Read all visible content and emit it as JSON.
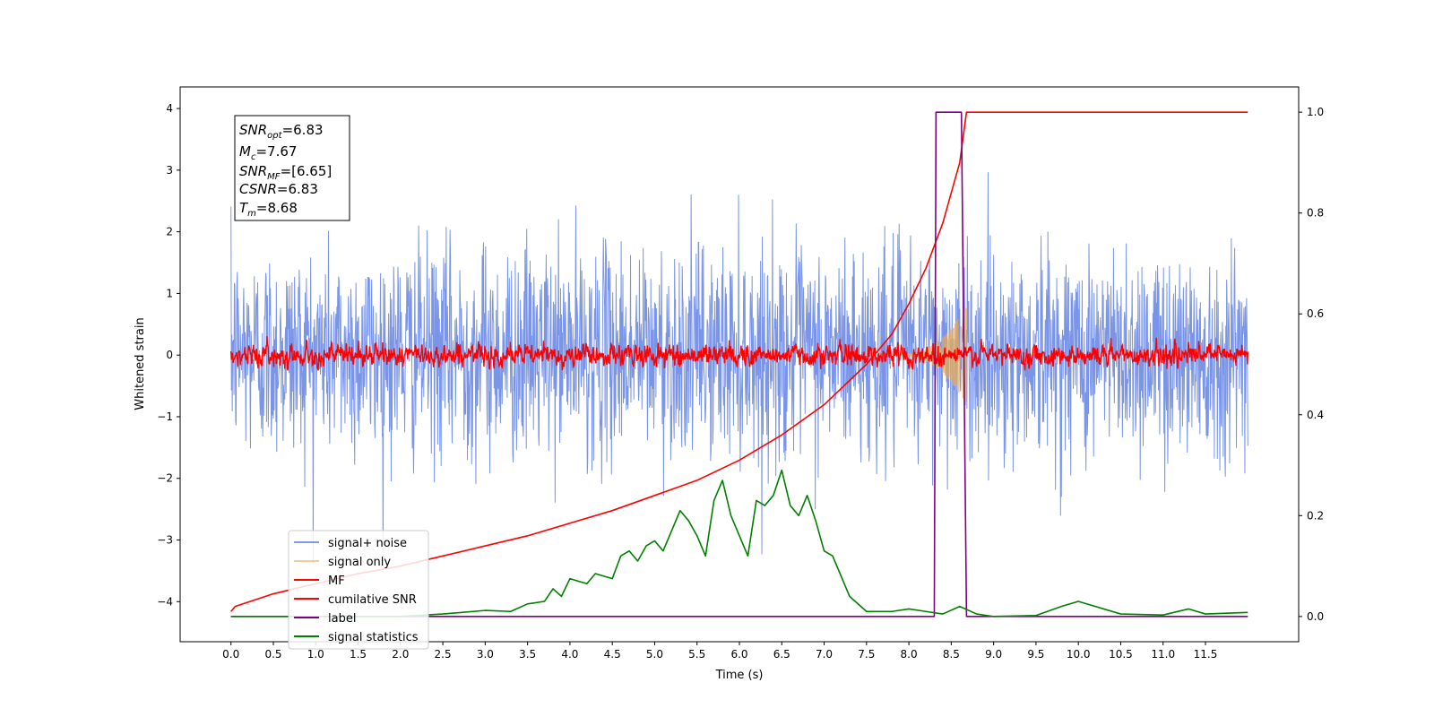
{
  "chart_data": {
    "type": "line",
    "xlabel": "Time (s)",
    "ylabel": "Whitened strain",
    "xlim": [
      -0.6,
      12.6
    ],
    "ylim": [
      -4.65,
      4.35
    ],
    "y2lim": [
      -0.05,
      1.05
    ],
    "xticks": [
      "0.0",
      "0.5",
      "1.0",
      "1.5",
      "2.0",
      "2.5",
      "3.0",
      "3.5",
      "4.0",
      "4.5",
      "5.0",
      "5.5",
      "6.0",
      "6.5",
      "7.0",
      "7.5",
      "8.0",
      "8.5",
      "9.0",
      "9.5",
      "10.0",
      "10.5",
      "11.0",
      "11.5"
    ],
    "yticks": [
      "4",
      "3",
      "2",
      "1",
      "0",
      "−1",
      "−2",
      "−3",
      "−4"
    ],
    "y2ticks": [
      "1.0",
      "0.8",
      "0.6",
      "0.4",
      "0.2",
      "0.0"
    ],
    "colors": {
      "signal_noise": "#6b8ae6",
      "signal_only": "#f0ad4e",
      "mf": "#ff0000",
      "cumulative_snr": "#ff0000",
      "label": "#800080",
      "signal_statistics": "#008000"
    },
    "annotation": {
      "snr_opt": "=6.83",
      "mc": "=7.67",
      "snr_mf": "=[6.65]",
      "csnr": "=6.83",
      "tm": "=8.68"
    },
    "legend": {
      "placement": "lower-left",
      "entries": [
        "signal+ noise",
        "signal only",
        "MF",
        "cumilative SNR",
        "label",
        "signal statistics"
      ]
    },
    "series": [
      {
        "name": "signal+ noise",
        "axis": "left",
        "kind": "gaussian-noise",
        "x_range": [
          0.0,
          12.0
        ],
        "mean": 0.05,
        "std": 0.85,
        "range": [
          -4.0,
          3.9
        ]
      },
      {
        "name": "signal only",
        "axis": "left",
        "kind": "chirp",
        "x_range": [
          7.9,
          8.68
        ],
        "peak_amplitude": 0.8
      },
      {
        "name": "MF",
        "axis": "left",
        "kind": "filtered-noise",
        "x_range": [
          0.0,
          12.0
        ],
        "mean": 0.0,
        "std": 0.14,
        "range": [
          -0.25,
          0.6
        ]
      },
      {
        "name": "cumilative SNR",
        "axis": "right",
        "x": [
          0.0,
          0.05,
          0.5,
          1.0,
          1.5,
          2.0,
          2.5,
          3.0,
          3.5,
          4.0,
          4.5,
          5.0,
          5.5,
          6.0,
          6.5,
          7.0,
          7.5,
          7.8,
          8.0,
          8.2,
          8.4,
          8.6,
          8.68,
          12.0
        ],
        "values": [
          0.01,
          0.02,
          0.045,
          0.065,
          0.085,
          0.1,
          0.12,
          0.14,
          0.16,
          0.185,
          0.21,
          0.24,
          0.27,
          0.31,
          0.36,
          0.42,
          0.5,
          0.56,
          0.62,
          0.69,
          0.78,
          0.9,
          1.0,
          1.0
        ]
      },
      {
        "name": "label",
        "axis": "right",
        "x": [
          0.0,
          8.3,
          8.32,
          8.62,
          8.68,
          12.0
        ],
        "values": [
          0.0,
          0.0,
          1.0,
          1.0,
          0.0,
          0.0
        ]
      },
      {
        "name": "signal statistics",
        "axis": "right",
        "x": [
          0.0,
          0.5,
          1.0,
          1.5,
          2.0,
          2.5,
          3.0,
          3.3,
          3.5,
          3.7,
          3.8,
          3.9,
          4.0,
          4.1,
          4.2,
          4.3,
          4.4,
          4.5,
          4.6,
          4.7,
          4.8,
          4.9,
          5.0,
          5.1,
          5.2,
          5.3,
          5.4,
          5.5,
          5.6,
          5.7,
          5.8,
          5.9,
          6.0,
          6.1,
          6.2,
          6.3,
          6.4,
          6.5,
          6.6,
          6.7,
          6.8,
          6.9,
          7.0,
          7.1,
          7.2,
          7.3,
          7.5,
          7.8,
          8.0,
          8.2,
          8.4,
          8.6,
          8.8,
          9.0,
          9.5,
          9.8,
          10.0,
          10.5,
          11.0,
          11.3,
          11.5,
          12.0
        ],
        "values": [
          0.0,
          0.0,
          0.0,
          0.0,
          0.0,
          0.005,
          0.012,
          0.01,
          0.025,
          0.03,
          0.055,
          0.04,
          0.075,
          0.07,
          0.065,
          0.085,
          0.08,
          0.075,
          0.12,
          0.13,
          0.11,
          0.14,
          0.15,
          0.13,
          0.17,
          0.21,
          0.19,
          0.16,
          0.12,
          0.23,
          0.27,
          0.2,
          0.16,
          0.12,
          0.23,
          0.22,
          0.24,
          0.29,
          0.22,
          0.2,
          0.24,
          0.19,
          0.13,
          0.12,
          0.08,
          0.04,
          0.01,
          0.01,
          0.015,
          0.01,
          0.005,
          0.02,
          0.005,
          0.0,
          0.002,
          0.02,
          0.03,
          0.005,
          0.003,
          0.015,
          0.005,
          0.008
        ]
      }
    ]
  }
}
